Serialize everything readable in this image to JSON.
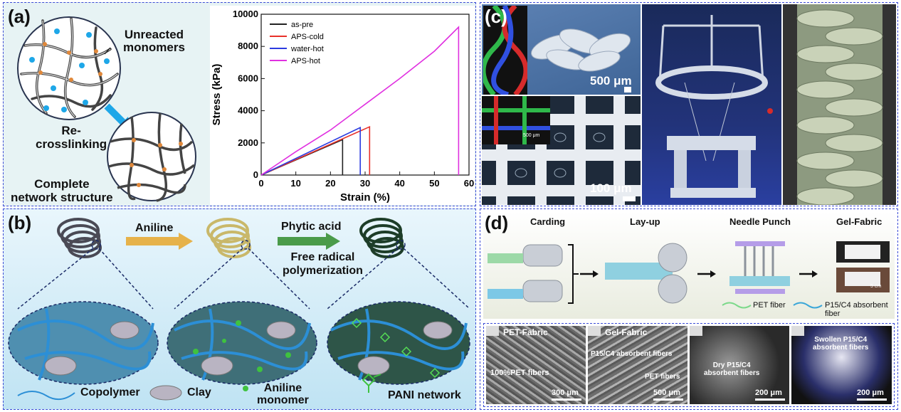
{
  "panel_a": {
    "label": "(a)",
    "unreacted": "Unreacted\nmonomers",
    "recrosslinking": "Re-\ncrosslinking",
    "complete": "Complete\nnetwork structure",
    "colors": {
      "bg": "#e7f3f4",
      "monomer": "#1ea7e8",
      "node": "#e0883a",
      "arrow": "#1ea7e8"
    }
  },
  "chart_data": {
    "type": "line",
    "xlabel": "Strain (%)",
    "ylabel": "Stress (kPa)",
    "xlim": [
      0,
      60
    ],
    "ylim": [
      0,
      10000
    ],
    "xticks": [
      "0",
      "10",
      "20",
      "30",
      "40",
      "50",
      "60"
    ],
    "yticks": [
      "0",
      "2000",
      "4000",
      "6000",
      "8000",
      "10000"
    ],
    "legend_position": "top-left",
    "series": [
      {
        "name": "as-pre",
        "color": "#222222",
        "x": [
          0,
          23.5,
          23.5
        ],
        "y": [
          0,
          2200,
          0
        ]
      },
      {
        "name": "APS-cold",
        "color": "#e8312a",
        "x": [
          0,
          31.3,
          31.3
        ],
        "y": [
          0,
          3000,
          0
        ]
      },
      {
        "name": "water-hot",
        "color": "#2b3be0",
        "x": [
          0,
          28.6,
          28.6
        ],
        "y": [
          0,
          2950,
          0
        ]
      },
      {
        "name": "APS-hot",
        "color": "#e030e0",
        "x": [
          0,
          10,
          20,
          30,
          40,
          50,
          57,
          57
        ],
        "y": [
          0,
          1450,
          2800,
          4400,
          6000,
          7700,
          9200,
          0
        ]
      }
    ]
  },
  "panel_b": {
    "label": "(b)",
    "aniline": "Aniline",
    "phytic": "Phytic acid",
    "free_radical": "Free radical\npolymerization",
    "copolymer": "Copolymer",
    "clay": "Clay",
    "aniline_monomer": "Aniline\nmonomer",
    "pani": "PANI network",
    "colors": {
      "bg": "#cfe9f5",
      "fiber": "#2c8fd6",
      "pani": "#3fc23f"
    }
  },
  "panel_c": {
    "label": "(c)",
    "scale1": "500 μm",
    "scale2": "100 μm",
    "scale_small": "500 μm",
    "scale_tiny": "100 μm"
  },
  "panel_d": {
    "label": "(d)",
    "steps": [
      "Carding",
      "Lay-up",
      "Needle Punch",
      "Gel-Fabric"
    ],
    "legend_pet": "PET fiber",
    "legend_abs": "P15/C4 absorbent fiber",
    "sem": [
      {
        "title": "PET-Fabric",
        "note": "100%PET fibers",
        "scale": "300 μm"
      },
      {
        "title": "Gel-Fabric",
        "note": "P15/C4 absorbent fibers",
        "note2": "PET fibers",
        "scale": "500 μm"
      },
      {
        "title": "",
        "note": "Dry P15/C4\nabsorbent fibers",
        "scale": "200 μm"
      },
      {
        "title": "",
        "note": "Swollen P15/C4\nabsorbent fibers",
        "scale": "200 μm"
      }
    ],
    "scale_photo": "5 cm"
  }
}
